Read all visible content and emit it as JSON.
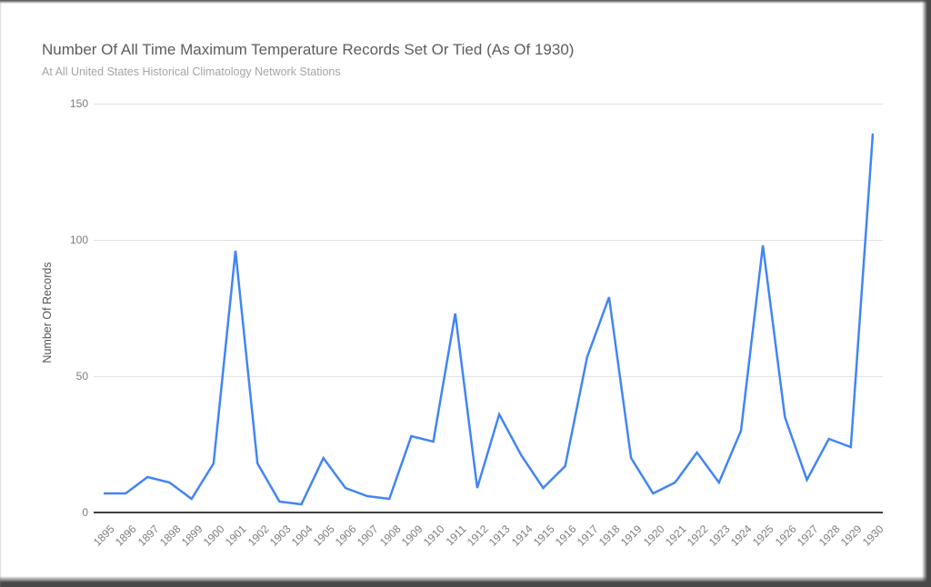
{
  "chart": {
    "title": "Number Of All Time Maximum Temperature Records Set Or Tied (As Of 1930)",
    "subtitle": "At All United States Historical Climatology Network Stations",
    "y_axis_title": "Number Of Records"
  },
  "chart_data": {
    "type": "line",
    "title": "Number Of All Time Maximum Temperature Records Set Or Tied (As Of 1930)",
    "subtitle": "At All United States Historical Climatology Network Stations",
    "xlabel": "",
    "ylabel": "Number Of Records",
    "x": [
      1895,
      1896,
      1897,
      1898,
      1899,
      1900,
      1901,
      1902,
      1903,
      1904,
      1905,
      1906,
      1907,
      1908,
      1909,
      1910,
      1911,
      1912,
      1913,
      1914,
      1915,
      1916,
      1917,
      1918,
      1919,
      1920,
      1921,
      1922,
      1923,
      1924,
      1925,
      1926,
      1927,
      1928,
      1929,
      1930
    ],
    "values": [
      7,
      7,
      13,
      11,
      5,
      18,
      96,
      18,
      4,
      3,
      20,
      9,
      6,
      5,
      28,
      26,
      73,
      9,
      36,
      21,
      9,
      17,
      57,
      79,
      20,
      7,
      11,
      22,
      11,
      30,
      98,
      35,
      12,
      27,
      24,
      139
    ],
    "ylim": [
      0,
      150
    ],
    "yticks": [
      0,
      50,
      100,
      150
    ],
    "grid": true,
    "legend": false,
    "line_color": "#4285f4",
    "line_width": 2.5,
    "gridline_color": "#e2e2e2",
    "axis_color": "#3f3f3f",
    "tick_label_color": "#7d7d7d",
    "title_color": "#5d5d5d",
    "subtitle_color": "#a5a5a5"
  }
}
